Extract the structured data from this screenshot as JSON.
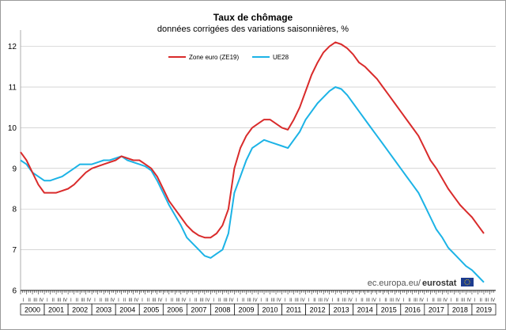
{
  "chart_data": {
    "type": "line",
    "title": "Taux de chômage",
    "subtitle": "données corrigées des variations saisonnières, %",
    "xlabel": "",
    "ylabel": "",
    "ylim": [
      6,
      12.4
    ],
    "yticks": [
      "6",
      "7",
      "8",
      "9",
      "10",
      "11",
      "12"
    ],
    "categories": [
      "2000",
      "2001",
      "2002",
      "2003",
      "2004",
      "2005",
      "2006",
      "2007",
      "2008",
      "2009",
      "2010",
      "2011",
      "2012",
      "2013",
      "2014",
      "2015",
      "2016",
      "2017",
      "2018",
      "2019"
    ],
    "quarter_labels": [
      "I",
      "II",
      "III",
      "IV"
    ],
    "legend_position": "top-center",
    "grid": true,
    "x_range": [
      2000.0,
      2019.5
    ],
    "series": [
      {
        "name": "Zone euro (ZE19)",
        "color": "#d92b2b",
        "points": [
          [
            2000.0,
            9.4
          ],
          [
            2000.25,
            9.2
          ],
          [
            2000.5,
            8.9
          ],
          [
            2000.75,
            8.6
          ],
          [
            2001.0,
            8.4
          ],
          [
            2001.25,
            8.4
          ],
          [
            2001.5,
            8.4
          ],
          [
            2001.75,
            8.45
          ],
          [
            2002.0,
            8.5
          ],
          [
            2002.25,
            8.6
          ],
          [
            2002.5,
            8.75
          ],
          [
            2002.75,
            8.9
          ],
          [
            2003.0,
            9.0
          ],
          [
            2003.25,
            9.05
          ],
          [
            2003.5,
            9.1
          ],
          [
            2003.75,
            9.15
          ],
          [
            2004.0,
            9.2
          ],
          [
            2004.25,
            9.3
          ],
          [
            2004.5,
            9.25
          ],
          [
            2004.75,
            9.2
          ],
          [
            2005.0,
            9.2
          ],
          [
            2005.25,
            9.1
          ],
          [
            2005.5,
            9.0
          ],
          [
            2005.75,
            8.8
          ],
          [
            2006.0,
            8.5
          ],
          [
            2006.25,
            8.2
          ],
          [
            2006.5,
            8.0
          ],
          [
            2006.75,
            7.8
          ],
          [
            2007.0,
            7.6
          ],
          [
            2007.25,
            7.45
          ],
          [
            2007.5,
            7.35
          ],
          [
            2007.75,
            7.3
          ],
          [
            2008.0,
            7.3
          ],
          [
            2008.25,
            7.4
          ],
          [
            2008.5,
            7.6
          ],
          [
            2008.75,
            8.0
          ],
          [
            2009.0,
            9.0
          ],
          [
            2009.25,
            9.5
          ],
          [
            2009.5,
            9.8
          ],
          [
            2009.75,
            10.0
          ],
          [
            2010.0,
            10.1
          ],
          [
            2010.25,
            10.2
          ],
          [
            2010.5,
            10.2
          ],
          [
            2010.75,
            10.1
          ],
          [
            2011.0,
            10.0
          ],
          [
            2011.25,
            9.95
          ],
          [
            2011.5,
            10.2
          ],
          [
            2011.75,
            10.5
          ],
          [
            2012.0,
            10.9
          ],
          [
            2012.25,
            11.3
          ],
          [
            2012.5,
            11.6
          ],
          [
            2012.75,
            11.85
          ],
          [
            2013.0,
            12.0
          ],
          [
            2013.25,
            12.1
          ],
          [
            2013.5,
            12.05
          ],
          [
            2013.75,
            11.95
          ],
          [
            2014.0,
            11.8
          ],
          [
            2014.25,
            11.6
          ],
          [
            2014.5,
            11.5
          ],
          [
            2014.75,
            11.35
          ],
          [
            2015.0,
            11.2
          ],
          [
            2015.25,
            11.0
          ],
          [
            2015.5,
            10.8
          ],
          [
            2015.75,
            10.6
          ],
          [
            2016.0,
            10.4
          ],
          [
            2016.25,
            10.2
          ],
          [
            2016.5,
            10.0
          ],
          [
            2016.75,
            9.8
          ],
          [
            2017.0,
            9.5
          ],
          [
            2017.25,
            9.2
          ],
          [
            2017.5,
            9.0
          ],
          [
            2017.75,
            8.75
          ],
          [
            2018.0,
            8.5
          ],
          [
            2018.25,
            8.3
          ],
          [
            2018.5,
            8.1
          ],
          [
            2018.75,
            7.95
          ],
          [
            2019.0,
            7.8
          ],
          [
            2019.25,
            7.6
          ],
          [
            2019.5,
            7.4
          ]
        ]
      },
      {
        "name": "UE28",
        "color": "#1cb3e6",
        "points": [
          [
            2000.0,
            9.2
          ],
          [
            2000.25,
            9.1
          ],
          [
            2000.5,
            8.9
          ],
          [
            2000.75,
            8.8
          ],
          [
            2001.0,
            8.7
          ],
          [
            2001.25,
            8.7
          ],
          [
            2001.5,
            8.75
          ],
          [
            2001.75,
            8.8
          ],
          [
            2002.0,
            8.9
          ],
          [
            2002.25,
            9.0
          ],
          [
            2002.5,
            9.1
          ],
          [
            2002.75,
            9.1
          ],
          [
            2003.0,
            9.1
          ],
          [
            2003.25,
            9.15
          ],
          [
            2003.5,
            9.2
          ],
          [
            2003.75,
            9.2
          ],
          [
            2004.0,
            9.25
          ],
          [
            2004.25,
            9.3
          ],
          [
            2004.5,
            9.2
          ],
          [
            2004.75,
            9.15
          ],
          [
            2005.0,
            9.1
          ],
          [
            2005.25,
            9.05
          ],
          [
            2005.5,
            8.95
          ],
          [
            2005.75,
            8.7
          ],
          [
            2006.0,
            8.4
          ],
          [
            2006.25,
            8.1
          ],
          [
            2006.5,
            7.85
          ],
          [
            2006.75,
            7.6
          ],
          [
            2007.0,
            7.3
          ],
          [
            2007.25,
            7.15
          ],
          [
            2007.5,
            7.0
          ],
          [
            2007.75,
            6.85
          ],
          [
            2008.0,
            6.8
          ],
          [
            2008.25,
            6.9
          ],
          [
            2008.5,
            7.0
          ],
          [
            2008.75,
            7.4
          ],
          [
            2009.0,
            8.4
          ],
          [
            2009.25,
            8.8
          ],
          [
            2009.5,
            9.2
          ],
          [
            2009.75,
            9.5
          ],
          [
            2010.0,
            9.6
          ],
          [
            2010.25,
            9.7
          ],
          [
            2010.5,
            9.65
          ],
          [
            2010.75,
            9.6
          ],
          [
            2011.0,
            9.55
          ],
          [
            2011.25,
            9.5
          ],
          [
            2011.5,
            9.7
          ],
          [
            2011.75,
            9.9
          ],
          [
            2012.0,
            10.2
          ],
          [
            2012.25,
            10.4
          ],
          [
            2012.5,
            10.6
          ],
          [
            2012.75,
            10.75
          ],
          [
            2013.0,
            10.9
          ],
          [
            2013.25,
            11.0
          ],
          [
            2013.5,
            10.95
          ],
          [
            2013.75,
            10.8
          ],
          [
            2014.0,
            10.6
          ],
          [
            2014.25,
            10.4
          ],
          [
            2014.5,
            10.2
          ],
          [
            2014.75,
            10.0
          ],
          [
            2015.0,
            9.8
          ],
          [
            2015.25,
            9.6
          ],
          [
            2015.5,
            9.4
          ],
          [
            2015.75,
            9.2
          ],
          [
            2016.0,
            9.0
          ],
          [
            2016.25,
            8.8
          ],
          [
            2016.5,
            8.6
          ],
          [
            2016.75,
            8.4
          ],
          [
            2017.0,
            8.1
          ],
          [
            2017.25,
            7.8
          ],
          [
            2017.5,
            7.5
          ],
          [
            2017.75,
            7.3
          ],
          [
            2018.0,
            7.05
          ],
          [
            2018.25,
            6.9
          ],
          [
            2018.5,
            6.75
          ],
          [
            2018.75,
            6.6
          ],
          [
            2019.0,
            6.5
          ],
          [
            2019.25,
            6.35
          ],
          [
            2019.5,
            6.2
          ]
        ]
      }
    ]
  },
  "source": {
    "url": "ec.europa.eu/",
    "brand": "eurostat"
  }
}
